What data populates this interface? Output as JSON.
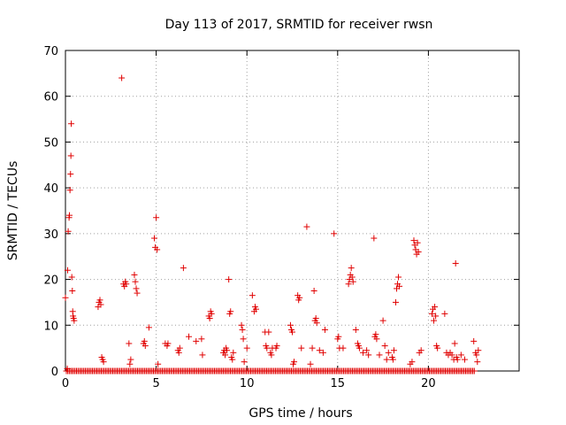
{
  "chart_data": {
    "type": "scatter",
    "title": "Day 113 of 2017, SRMTID for receiver rwsn",
    "xlabel": "GPS time / hours",
    "ylabel": "SRMTID / TECUs",
    "xlim": [
      0,
      25
    ],
    "ylim": [
      0,
      70
    ],
    "xticks": [
      0,
      5,
      10,
      15,
      20
    ],
    "yticks": [
      0,
      10,
      20,
      30,
      40,
      50,
      60,
      70
    ],
    "grid": true,
    "marker": "+",
    "color": "#e00000",
    "baseline": {
      "y": 0,
      "x_start": 0.05,
      "x_end": 22.6,
      "step": 0.08
    },
    "series": [
      {
        "name": "SRMTID",
        "x": [
          0.0,
          0.1,
          0.12,
          0.15,
          0.2,
          0.22,
          0.25,
          0.28,
          0.3,
          0.32,
          0.35,
          0.38,
          0.4,
          0.42,
          0.45,
          0.48,
          1.8,
          1.85,
          1.9,
          1.95,
          2.0,
          2.05,
          2.1,
          3.1,
          3.2,
          3.25,
          3.3,
          3.35,
          3.5,
          3.55,
          3.6,
          3.8,
          3.85,
          3.9,
          3.95,
          4.3,
          4.35,
          4.4,
          4.6,
          4.9,
          4.95,
          5.0,
          5.05,
          5.1,
          5.5,
          5.6,
          5.65,
          6.2,
          6.25,
          6.3,
          6.5,
          6.8,
          7.2,
          7.5,
          7.55,
          7.9,
          7.95,
          8.0,
          8.05,
          8.7,
          8.75,
          8.8,
          8.85,
          8.9,
          9.0,
          9.05,
          9.1,
          9.15,
          9.2,
          9.25,
          9.7,
          9.75,
          9.8,
          9.85,
          10.0,
          10.3,
          10.4,
          10.45,
          10.5,
          11.0,
          11.05,
          11.1,
          11.2,
          11.3,
          11.35,
          11.4,
          11.6,
          11.65,
          12.4,
          12.45,
          12.5,
          12.55,
          12.6,
          12.8,
          12.85,
          12.9,
          13.0,
          13.3,
          13.5,
          13.6,
          13.7,
          13.75,
          13.8,
          13.85,
          14.0,
          14.2,
          14.3,
          14.8,
          15.0,
          15.05,
          15.1,
          15.3,
          15.6,
          15.65,
          15.7,
          15.75,
          15.8,
          15.85,
          16.0,
          16.1,
          16.15,
          16.2,
          16.4,
          16.6,
          16.7,
          17.0,
          17.05,
          17.1,
          17.15,
          17.3,
          17.5,
          17.6,
          17.7,
          17.8,
          18.0,
          18.05,
          18.1,
          18.2,
          18.25,
          18.3,
          18.35,
          18.4,
          19.0,
          19.1,
          19.2,
          19.25,
          19.3,
          19.35,
          19.4,
          19.45,
          19.5,
          19.6,
          20.2,
          20.25,
          20.3,
          20.35,
          20.4,
          20.45,
          20.5,
          20.9,
          21.0,
          21.1,
          21.2,
          21.3,
          21.4,
          21.45,
          21.5,
          21.55,
          21.6,
          21.8,
          22.0,
          22.5,
          22.6,
          22.65,
          22.7,
          22.75
        ],
        "y": [
          16.0,
          0.5,
          22.0,
          30.5,
          33.5,
          34.0,
          39.5,
          43.0,
          47.0,
          54.0,
          20.5,
          17.5,
          13.0,
          12.0,
          11.5,
          11.0,
          14.0,
          15.0,
          15.5,
          14.5,
          3.0,
          2.5,
          2.0,
          64.0,
          19.0,
          18.5,
          19.5,
          19.0,
          6.0,
          1.5,
          2.5,
          21.0,
          19.5,
          18.0,
          17.0,
          6.0,
          6.5,
          5.5,
          9.5,
          29.0,
          27.0,
          33.5,
          26.5,
          1.5,
          6.0,
          5.5,
          6.0,
          4.5,
          4.0,
          5.0,
          22.5,
          7.5,
          6.5,
          7.0,
          3.5,
          12.0,
          11.5,
          13.0,
          12.5,
          4.0,
          4.5,
          3.5,
          5.0,
          4.5,
          20.0,
          12.5,
          13.0,
          3.0,
          2.5,
          4.0,
          10.0,
          9.0,
          7.0,
          2.0,
          5.0,
          16.5,
          13.0,
          14.0,
          13.5,
          8.5,
          5.5,
          5.0,
          8.5,
          4.0,
          3.5,
          5.0,
          5.0,
          5.5,
          10.0,
          9.0,
          8.5,
          1.5,
          2.0,
          16.5,
          15.5,
          16.0,
          5.0,
          31.5,
          1.5,
          5.0,
          17.5,
          11.0,
          11.5,
          10.5,
          4.5,
          4.0,
          9.0,
          30.0,
          7.0,
          7.5,
          5.0,
          5.0,
          19.0,
          20.0,
          21.0,
          22.5,
          20.5,
          19.5,
          9.0,
          6.0,
          5.5,
          5.0,
          4.0,
          4.5,
          3.5,
          29.0,
          7.5,
          8.0,
          7.0,
          3.5,
          11.0,
          5.5,
          2.5,
          4.0,
          3.0,
          2.5,
          4.5,
          15.0,
          18.0,
          19.0,
          20.5,
          18.5,
          1.5,
          2.0,
          28.5,
          27.5,
          26.5,
          25.5,
          28.0,
          26.0,
          4.0,
          4.5,
          12.5,
          13.5,
          11.0,
          14.0,
          12.0,
          5.5,
          5.0,
          12.5,
          4.0,
          3.5,
          4.0,
          3.5,
          2.5,
          6.0,
          23.5,
          3.0,
          2.5,
          3.5,
          2.5,
          6.5,
          4.0,
          3.5,
          2.0,
          4.5
        ]
      }
    ]
  }
}
